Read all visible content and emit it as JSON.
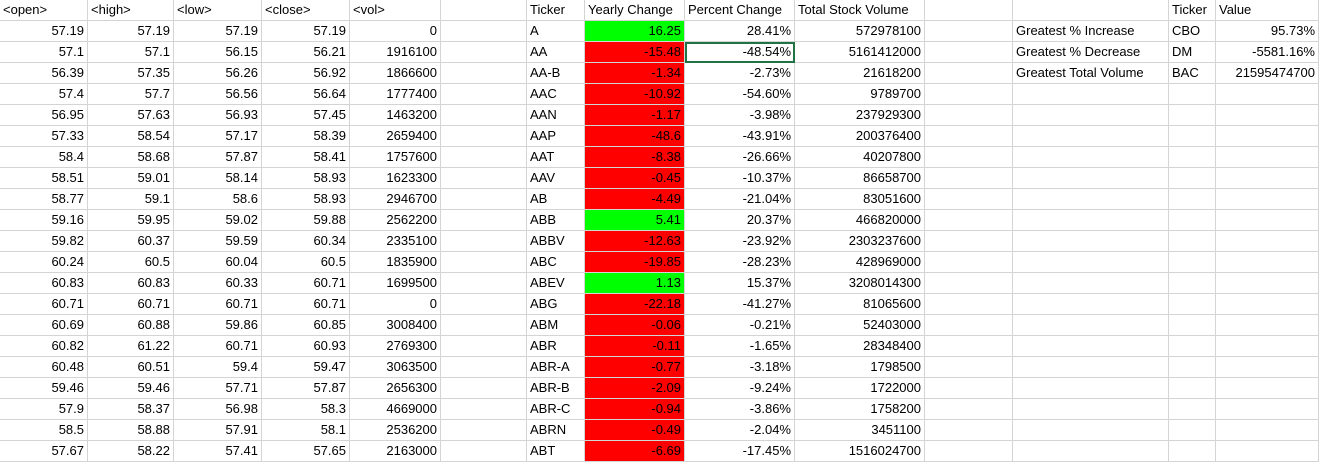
{
  "sheet": {
    "headers": [
      "<open>",
      "<high>",
      "<low>",
      "<close>",
      "<vol>",
      "",
      "Ticker",
      "Yearly Change",
      "Percent Change",
      "Total Stock Volume",
      "",
      "",
      "Ticker",
      "Value"
    ],
    "colors": {
      "grid": "#d4d4d4",
      "positive": "#00ff00",
      "negative": "#ff0000",
      "selection": "#217346"
    },
    "rows": [
      [
        "57.19",
        "57.19",
        "57.19",
        "57.19",
        "0",
        "",
        "A",
        "16.25",
        "28.41%",
        "572978100"
      ],
      [
        "57.1",
        "57.1",
        "56.15",
        "56.21",
        "1916100",
        "",
        "AA",
        "-15.48",
        "-48.54%",
        "5161412000"
      ],
      [
        "56.39",
        "57.35",
        "56.26",
        "56.92",
        "1866600",
        "",
        "AA-B",
        "-1.34",
        "-2.73%",
        "21618200"
      ],
      [
        "57.4",
        "57.7",
        "56.56",
        "56.64",
        "1777400",
        "",
        "AAC",
        "-10.92",
        "-54.60%",
        "9789700"
      ],
      [
        "56.95",
        "57.63",
        "56.93",
        "57.45",
        "1463200",
        "",
        "AAN",
        "-1.17",
        "-3.98%",
        "237929300"
      ],
      [
        "57.33",
        "58.54",
        "57.17",
        "58.39",
        "2659400",
        "",
        "AAP",
        "-48.6",
        "-43.91%",
        "200376400"
      ],
      [
        "58.4",
        "58.68",
        "57.87",
        "58.41",
        "1757600",
        "",
        "AAT",
        "-8.38",
        "-26.66%",
        "40207800"
      ],
      [
        "58.51",
        "59.01",
        "58.14",
        "58.93",
        "1623300",
        "",
        "AAV",
        "-0.45",
        "-10.37%",
        "86658700"
      ],
      [
        "58.77",
        "59.1",
        "58.6",
        "58.93",
        "2946700",
        "",
        "AB",
        "-4.49",
        "-21.04%",
        "83051600"
      ],
      [
        "59.16",
        "59.95",
        "59.02",
        "59.88",
        "2562200",
        "",
        "ABB",
        "5.41",
        "20.37%",
        "466820000"
      ],
      [
        "59.82",
        "60.37",
        "59.59",
        "60.34",
        "2335100",
        "",
        "ABBV",
        "-12.63",
        "-23.92%",
        "2303237600"
      ],
      [
        "60.24",
        "60.5",
        "60.04",
        "60.5",
        "1835900",
        "",
        "ABC",
        "-19.85",
        "-28.23%",
        "428969000"
      ],
      [
        "60.83",
        "60.83",
        "60.33",
        "60.71",
        "1699500",
        "",
        "ABEV",
        "1.13",
        "15.37%",
        "3208014300"
      ],
      [
        "60.71",
        "60.71",
        "60.71",
        "60.71",
        "0",
        "",
        "ABG",
        "-22.18",
        "-41.27%",
        "81065600"
      ],
      [
        "60.69",
        "60.88",
        "59.86",
        "60.85",
        "3008400",
        "",
        "ABM",
        "-0.06",
        "-0.21%",
        "52403000"
      ],
      [
        "60.82",
        "61.22",
        "60.71",
        "60.93",
        "2769300",
        "",
        "ABR",
        "-0.11",
        "-1.65%",
        "28348400"
      ],
      [
        "60.48",
        "60.51",
        "59.4",
        "59.47",
        "3063500",
        "",
        "ABR-A",
        "-0.77",
        "-3.18%",
        "1798500"
      ],
      [
        "59.46",
        "59.46",
        "57.71",
        "57.87",
        "2656300",
        "",
        "ABR-B",
        "-2.09",
        "-9.24%",
        "1722000"
      ],
      [
        "57.9",
        "58.37",
        "56.98",
        "58.3",
        "4669000",
        "",
        "ABR-C",
        "-0.94",
        "-3.86%",
        "1758200"
      ],
      [
        "58.5",
        "58.88",
        "57.91",
        "58.1",
        "2536200",
        "",
        "ABRN",
        "-0.49",
        "-2.04%",
        "3451100"
      ],
      [
        "57.67",
        "58.22",
        "57.41",
        "57.65",
        "2163000",
        "",
        "ABT",
        "-6.69",
        "-17.45%",
        "1516024700"
      ]
    ],
    "summary": [
      {
        "label": "Greatest % Increase",
        "ticker": "CBO",
        "value": "95.73%"
      },
      {
        "label": "Greatest % Decrease",
        "ticker": "DM",
        "value": "-5581.16%"
      },
      {
        "label": "Greatest Total Volume",
        "ticker": "BAC",
        "value": "21595474700"
      }
    ]
  }
}
